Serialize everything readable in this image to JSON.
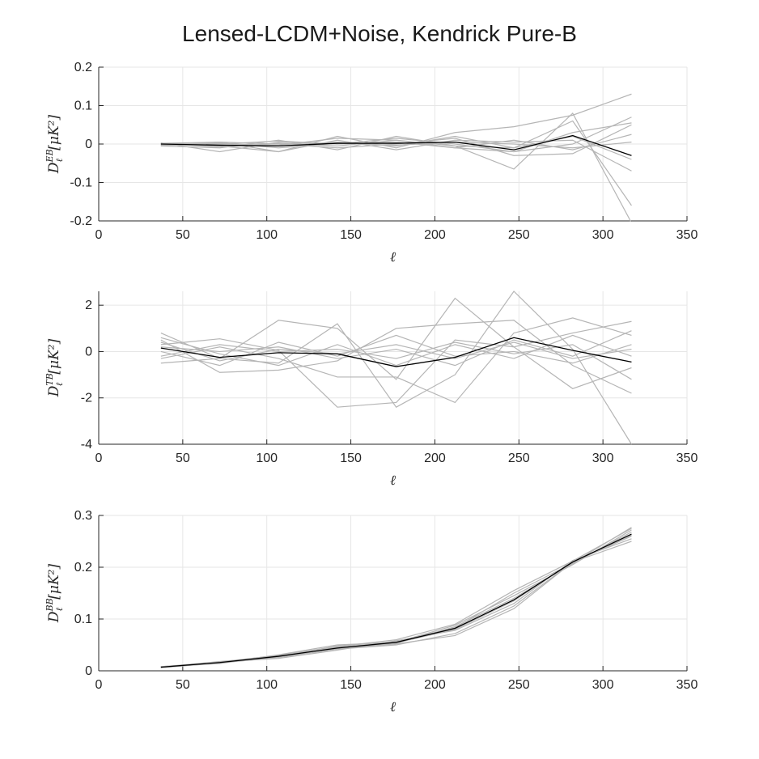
{
  "title": "Lensed-LCDM+Noise, Kendrick Pure-B",
  "colors": {
    "realization": "#b5b5b5",
    "mean": "#000000",
    "grid": "#e6e6e6",
    "axis": "#262626"
  },
  "chart_data": [
    {
      "type": "line",
      "xlabel": "ℓ",
      "ylabel_main": "D",
      "ylabel_sub": "ℓ",
      "ylabel_sup": "EB",
      "ylabel_unit": "[μK²]",
      "xlim": [
        0,
        350
      ],
      "ylim": [
        -0.2,
        0.2
      ],
      "xticks": [
        0,
        50,
        100,
        150,
        200,
        250,
        300,
        350
      ],
      "xtick_labels": [
        "0",
        "50",
        "100",
        "150",
        "200",
        "250",
        "300",
        "350"
      ],
      "yticks": [
        -0.2,
        -0.1,
        0,
        0.1,
        0.2
      ],
      "ytick_labels": [
        "-0.2",
        "-0.1",
        "0",
        "0.1",
        "0.2"
      ],
      "grid": true,
      "x": [
        37,
        72,
        107,
        142,
        177,
        212,
        247,
        282,
        317
      ],
      "mean": [
        0.0,
        -0.003,
        -0.005,
        0.002,
        0.002,
        0.005,
        -0.015,
        0.022,
        -0.03
      ],
      "realizations": [
        [
          0.002,
          0.005,
          -0.02,
          0.02,
          -0.01,
          0.03,
          0.045,
          0.075,
          0.13
        ],
        [
          -0.005,
          -0.01,
          0.01,
          -0.015,
          0.02,
          -0.005,
          -0.065,
          0.08,
          -0.205
        ],
        [
          0.0,
          0.002,
          -0.005,
          0.005,
          -0.005,
          0.02,
          -0.01,
          0.06,
          -0.16
        ],
        [
          0.003,
          -0.02,
          0.005,
          0.0,
          0.015,
          0.0,
          -0.02,
          0.0,
          0.07
        ],
        [
          -0.003,
          0.005,
          0.0,
          -0.01,
          0.0,
          0.015,
          -0.03,
          -0.025,
          0.05
        ],
        [
          0.001,
          -0.005,
          -0.02,
          0.01,
          -0.015,
          0.01,
          0.005,
          0.01,
          -0.07
        ],
        [
          0.0,
          0.0,
          0.008,
          0.0,
          0.005,
          -0.01,
          -0.02,
          0.03,
          0.055
        ],
        [
          -0.002,
          0.003,
          -0.01,
          0.002,
          -0.003,
          0.005,
          0.0,
          -0.01,
          0.005
        ],
        [
          0.002,
          -0.008,
          0.002,
          -0.005,
          0.01,
          -0.005,
          -0.01,
          0.02,
          -0.04
        ],
        [
          -0.004,
          0.0,
          -0.003,
          0.015,
          0.01,
          -0.01,
          0.01,
          -0.015,
          0.025
        ]
      ]
    },
    {
      "type": "line",
      "xlabel": "ℓ",
      "ylabel_main": "D",
      "ylabel_sub": "ℓ",
      "ylabel_sup": "TB",
      "ylabel_unit": "[μK²]",
      "xlim": [
        0,
        350
      ],
      "ylim": [
        -4,
        2.6
      ],
      "xticks": [
        0,
        50,
        100,
        150,
        200,
        250,
        300,
        350
      ],
      "xtick_labels": [
        "0",
        "50",
        "100",
        "150",
        "200",
        "250",
        "300",
        "350"
      ],
      "yticks": [
        -4,
        -2,
        0,
        2
      ],
      "ytick_labels": [
        "-4",
        "-2",
        "0",
        "2"
      ],
      "grid": true,
      "x": [
        37,
        72,
        107,
        142,
        177,
        212,
        247,
        282,
        317
      ],
      "mean": [
        0.15,
        -0.25,
        -0.05,
        -0.1,
        -0.65,
        -0.25,
        0.6,
        0.05,
        -0.45
      ],
      "realizations": [
        [
          0.8,
          -0.3,
          1.35,
          1.0,
          -1.2,
          2.3,
          0.2,
          -1.6,
          -0.7
        ],
        [
          -0.5,
          -0.3,
          -0.5,
          1.2,
          -2.4,
          -1.0,
          2.6,
          0.1,
          -4.0
        ],
        [
          0.3,
          0.55,
          0.05,
          -2.4,
          -2.2,
          0.5,
          0.2,
          0.8,
          1.3
        ],
        [
          0.5,
          -0.9,
          -0.8,
          -0.4,
          1.0,
          1.2,
          1.35,
          -0.6,
          -1.8
        ],
        [
          -0.3,
          0.2,
          -0.3,
          -1.1,
          -1.1,
          -2.2,
          0.8,
          1.45,
          0.7
        ],
        [
          0.0,
          -0.6,
          0.4,
          -0.2,
          0.7,
          -0.2,
          0.0,
          -0.5,
          0.3
        ],
        [
          0.6,
          -0.1,
          -0.6,
          0.3,
          -0.6,
          0.3,
          -0.3,
          0.7,
          -0.2
        ],
        [
          0.2,
          0.0,
          0.2,
          -0.3,
          0.1,
          -0.6,
          0.5,
          -0.2,
          0.9
        ],
        [
          -0.2,
          0.3,
          0.0,
          0.1,
          -0.3,
          0.4,
          -0.1,
          0.3,
          -1.2
        ],
        [
          0.4,
          -0.4,
          0.1,
          -0.1,
          0.3,
          -0.3,
          0.4,
          -0.3,
          0.1
        ]
      ]
    },
    {
      "type": "line",
      "xlabel": "ℓ",
      "ylabel_main": "D",
      "ylabel_sub": "ℓ",
      "ylabel_sup": "BB",
      "ylabel_unit": "[μK²]",
      "xlim": [
        0,
        350
      ],
      "ylim": [
        0,
        0.3
      ],
      "xticks": [
        0,
        50,
        100,
        150,
        200,
        250,
        300,
        350
      ],
      "xtick_labels": [
        "0",
        "50",
        "100",
        "150",
        "200",
        "250",
        "300",
        "350"
      ],
      "yticks": [
        0,
        0.1,
        0.2,
        0.3
      ],
      "ytick_labels": [
        "0",
        "0.1",
        "0.2",
        "0.3"
      ],
      "grid": true,
      "x": [
        37,
        72,
        107,
        142,
        177,
        212,
        247,
        282,
        317
      ],
      "mean": [
        0.007,
        0.016,
        0.028,
        0.044,
        0.055,
        0.082,
        0.137,
        0.21,
        0.264
      ],
      "realizations": [
        [
          0.008,
          0.017,
          0.03,
          0.047,
          0.06,
          0.09,
          0.155,
          0.212,
          0.275
        ],
        [
          0.006,
          0.015,
          0.026,
          0.042,
          0.05,
          0.072,
          0.125,
          0.21,
          0.25
        ],
        [
          0.007,
          0.016,
          0.028,
          0.045,
          0.053,
          0.085,
          0.14,
          0.207,
          0.268
        ],
        [
          0.007,
          0.017,
          0.024,
          0.04,
          0.058,
          0.078,
          0.13,
          0.213,
          0.255
        ],
        [
          0.008,
          0.015,
          0.031,
          0.05,
          0.055,
          0.088,
          0.145,
          0.205,
          0.272
        ],
        [
          0.006,
          0.016,
          0.029,
          0.043,
          0.052,
          0.068,
          0.12,
          0.21,
          0.26
        ],
        [
          0.007,
          0.018,
          0.027,
          0.048,
          0.056,
          0.083,
          0.15,
          0.208,
          0.277
        ],
        [
          0.008,
          0.014,
          0.03,
          0.046,
          0.054,
          0.08,
          0.135,
          0.211,
          0.262
        ]
      ]
    }
  ]
}
